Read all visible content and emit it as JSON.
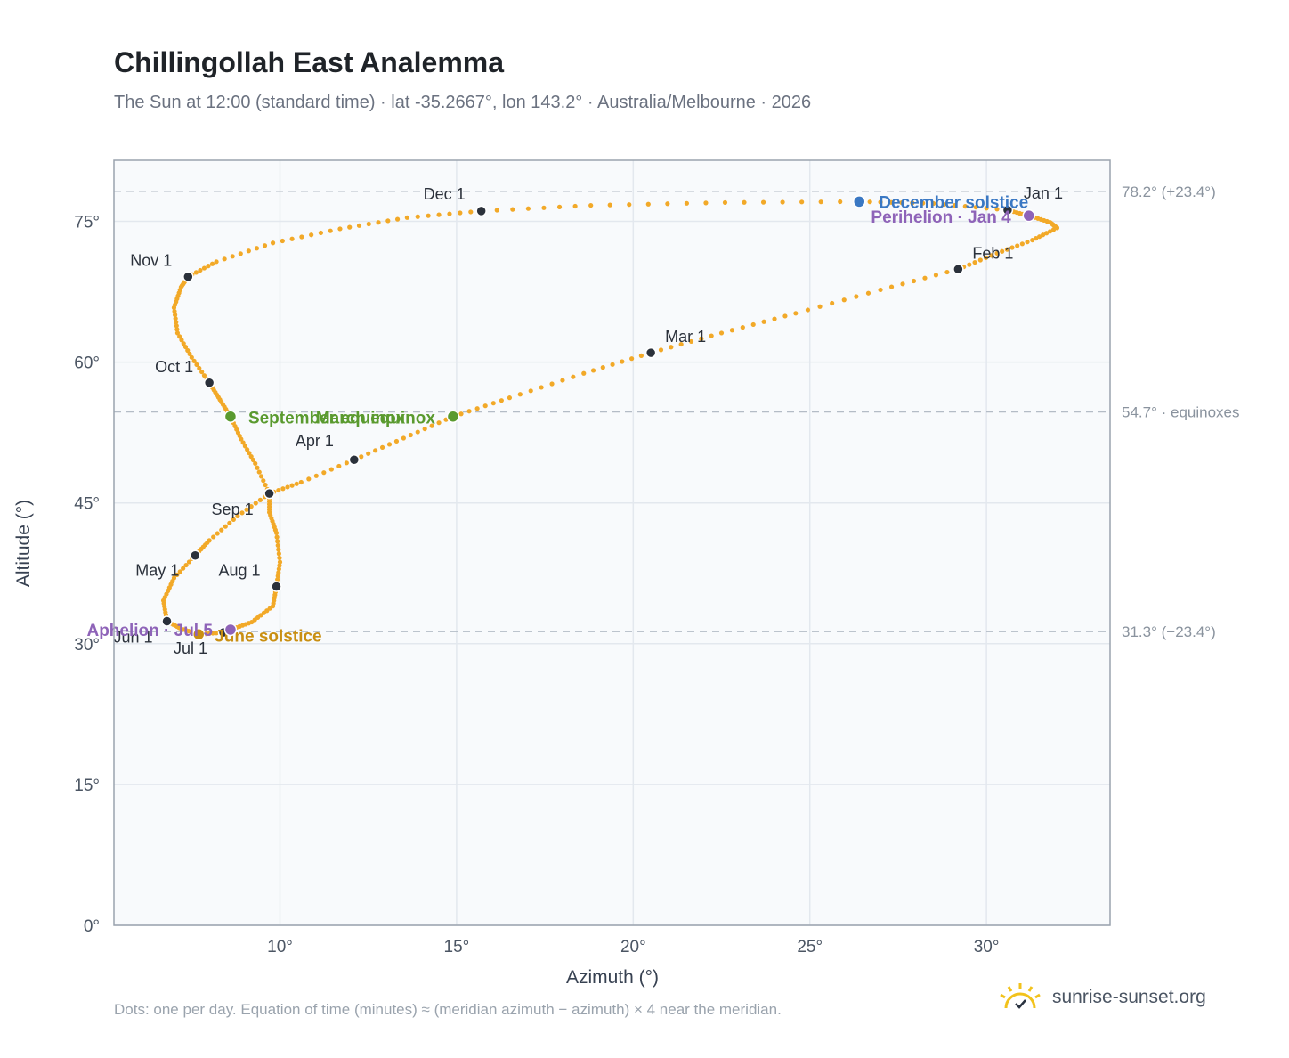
{
  "title": "Chillingollah East Analemma",
  "subtitle": "The Sun at 12:00 (standard time) · lat -35.2667°, lon 143.2° · Australia/Melbourne · 2026",
  "footnote": "Dots: one per day. Equation of time (minutes) ≈ (meridian azimuth − azimuth) × 4 near the meridian.",
  "brand": "sunrise-sunset.org",
  "chart_data": {
    "type": "scatter",
    "xlabel": "Azimuth (°)",
    "ylabel": "Altitude (°)",
    "xlim": [
      5.3,
      33.5
    ],
    "ylim": [
      0,
      81.5
    ],
    "xticks": [
      10,
      15,
      20,
      25,
      30
    ],
    "yticks": [
      0,
      15,
      30,
      45,
      60,
      75
    ],
    "xtick_labels": [
      "10°",
      "15°",
      "20°",
      "25°",
      "30°"
    ],
    "ytick_labels": [
      "0°",
      "15°",
      "30°",
      "45°",
      "60°",
      "75°"
    ],
    "grid": true,
    "reference_lines": [
      {
        "y": 78.2,
        "label": "78.2° (+23.4°)"
      },
      {
        "y": 54.7,
        "label": "54.7° · equinoxes"
      },
      {
        "y": 31.3,
        "label": "31.3° (−23.4°)"
      }
    ],
    "monthly_points": [
      {
        "label": "Jan 1",
        "x": 30.6,
        "y": 76.2
      },
      {
        "label": "Feb 1",
        "x": 29.2,
        "y": 69.9
      },
      {
        "label": "Mar 1",
        "x": 20.5,
        "y": 61.0
      },
      {
        "label": "Apr 1",
        "x": 12.1,
        "y": 49.6
      },
      {
        "label": "May 1",
        "x": 7.6,
        "y": 39.4
      },
      {
        "label": "Jun 1",
        "x": 6.8,
        "y": 32.4
      },
      {
        "label": "Jul 1",
        "x": 8.4,
        "y": 31.2
      },
      {
        "label": "Aug 1",
        "x": 9.9,
        "y": 36.1
      },
      {
        "label": "Sep 1",
        "x": 9.7,
        "y": 46.0
      },
      {
        "label": "Oct 1",
        "x": 8.0,
        "y": 57.8
      },
      {
        "label": "Nov 1",
        "x": 7.4,
        "y": 69.1
      },
      {
        "label": "Dec 1",
        "x": 15.7,
        "y": 76.1
      }
    ],
    "events": [
      {
        "label": "December solstice",
        "x": 26.4,
        "y": 77.1,
        "color": "#3a78c3"
      },
      {
        "label": "Perihelion · Jan 4",
        "x": 31.2,
        "y": 75.6,
        "color": "#8e63b8"
      },
      {
        "label": "March equinox",
        "x": 14.9,
        "y": 54.2,
        "color": "#5a9a2f"
      },
      {
        "label": "September equinox",
        "x": 8.6,
        "y": 54.2,
        "color": "#5a9a2f"
      },
      {
        "label": "June solstice",
        "x": 7.7,
        "y": 31.0,
        "color": "#c98f12"
      },
      {
        "label": "Aphelion · Jul 5",
        "x": 8.6,
        "y": 31.5,
        "color": "#8e63b8"
      }
    ],
    "daily_path": [
      [
        30.6,
        76.2
      ],
      [
        31.2,
        75.6
      ],
      [
        31.8,
        74.9
      ],
      [
        32.0,
        74.3
      ],
      [
        31.3,
        73.0
      ],
      [
        30.3,
        71.6
      ],
      [
        29.2,
        69.9
      ],
      [
        27.0,
        67.7
      ],
      [
        24.6,
        65.2
      ],
      [
        22.5,
        63.1
      ],
      [
        20.5,
        61.0
      ],
      [
        18.6,
        58.8
      ],
      [
        16.5,
        56.2
      ],
      [
        14.9,
        54.2
      ],
      [
        13.5,
        51.9
      ],
      [
        12.1,
        49.6
      ],
      [
        10.6,
        47.2
      ],
      [
        9.7,
        46.0
      ],
      [
        8.8,
        43.6
      ],
      [
        8.0,
        41.0
      ],
      [
        7.6,
        39.4
      ],
      [
        7.0,
        37.0
      ],
      [
        6.7,
        34.6
      ],
      [
        6.8,
        32.4
      ],
      [
        7.2,
        31.6
      ],
      [
        7.7,
        31.0
      ],
      [
        8.4,
        31.2
      ],
      [
        8.6,
        31.5
      ],
      [
        9.2,
        32.3
      ],
      [
        9.8,
        34.0
      ],
      [
        9.9,
        36.1
      ],
      [
        10.0,
        38.7
      ],
      [
        9.9,
        41.8
      ],
      [
        9.7,
        44.0
      ],
      [
        9.7,
        46.0
      ],
      [
        9.3,
        49.2
      ],
      [
        8.9,
        51.8
      ],
      [
        8.6,
        54.2
      ],
      [
        8.3,
        56.0
      ],
      [
        8.0,
        57.8
      ],
      [
        7.5,
        60.5
      ],
      [
        7.1,
        63.1
      ],
      [
        7.0,
        65.8
      ],
      [
        7.2,
        68.0
      ],
      [
        7.4,
        69.1
      ],
      [
        8.2,
        70.7
      ],
      [
        9.8,
        72.7
      ],
      [
        11.7,
        74.2
      ],
      [
        13.6,
        75.4
      ],
      [
        15.7,
        76.1
      ],
      [
        18.8,
        76.7
      ],
      [
        22.6,
        77.0
      ],
      [
        26.4,
        77.1
      ],
      [
        28.5,
        76.9
      ],
      [
        30.6,
        76.2
      ]
    ]
  }
}
